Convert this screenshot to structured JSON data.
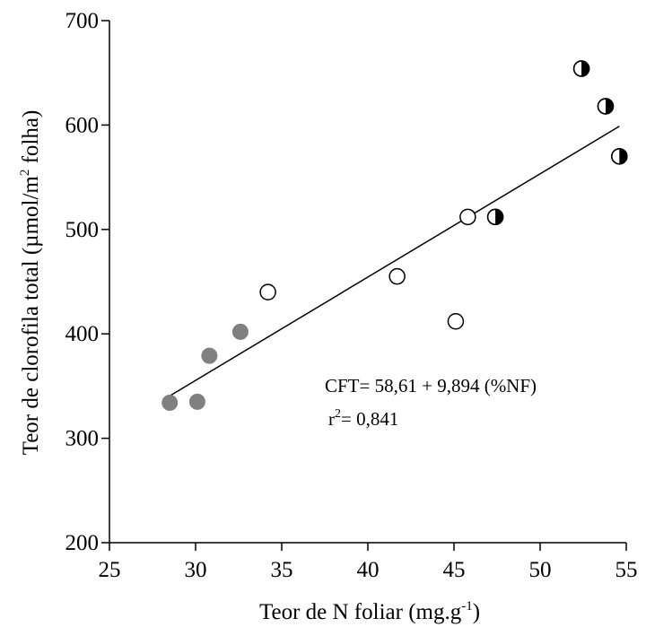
{
  "chart_data": {
    "type": "scatter",
    "title": "",
    "xlabel": "Teor de N foliar (mg.g",
    "xlabel_sup": "-1",
    "xlabel_end": ")",
    "ylabel": "Teor de clorofila  total (µmol/m",
    "ylabel_sup": "2",
    "ylabel_end": " folha)",
    "xlim": [
      25,
      55
    ],
    "ylim": [
      200,
      700
    ],
    "xticks": [
      25,
      30,
      35,
      40,
      45,
      50,
      55
    ],
    "yticks": [
      200,
      300,
      400,
      500,
      600,
      700
    ],
    "grid": false,
    "legend": "none",
    "series": [
      {
        "marker": "filled-gray",
        "color": "#808080",
        "points": [
          {
            "x": 28.5,
            "y": 334
          },
          {
            "x": 30.1,
            "y": 335
          },
          {
            "x": 30.8,
            "y": 379
          },
          {
            "x": 32.6,
            "y": 402
          }
        ]
      },
      {
        "marker": "open-circle",
        "color": "#ffffff",
        "points": [
          {
            "x": 34.2,
            "y": 440
          },
          {
            "x": 41.7,
            "y": 455
          },
          {
            "x": 45.1,
            "y": 412
          },
          {
            "x": 45.8,
            "y": 512
          }
        ]
      },
      {
        "marker": "half-filled",
        "color": "#000000",
        "points": [
          {
            "x": 47.4,
            "y": 512
          },
          {
            "x": 52.4,
            "y": 654
          },
          {
            "x": 53.8,
            "y": 618
          },
          {
            "x": 54.6,
            "y": 570
          }
        ]
      }
    ],
    "regression": {
      "intercept": 58.61,
      "slope": 9.894,
      "x_range": [
        28.5,
        54.6
      ]
    },
    "annotations": {
      "equation": "CFT= 58,61 + 9,894 (%NF)",
      "r2_prefix": "r",
      "r2_sup": "2",
      "r2_value": "= 0,841"
    }
  }
}
